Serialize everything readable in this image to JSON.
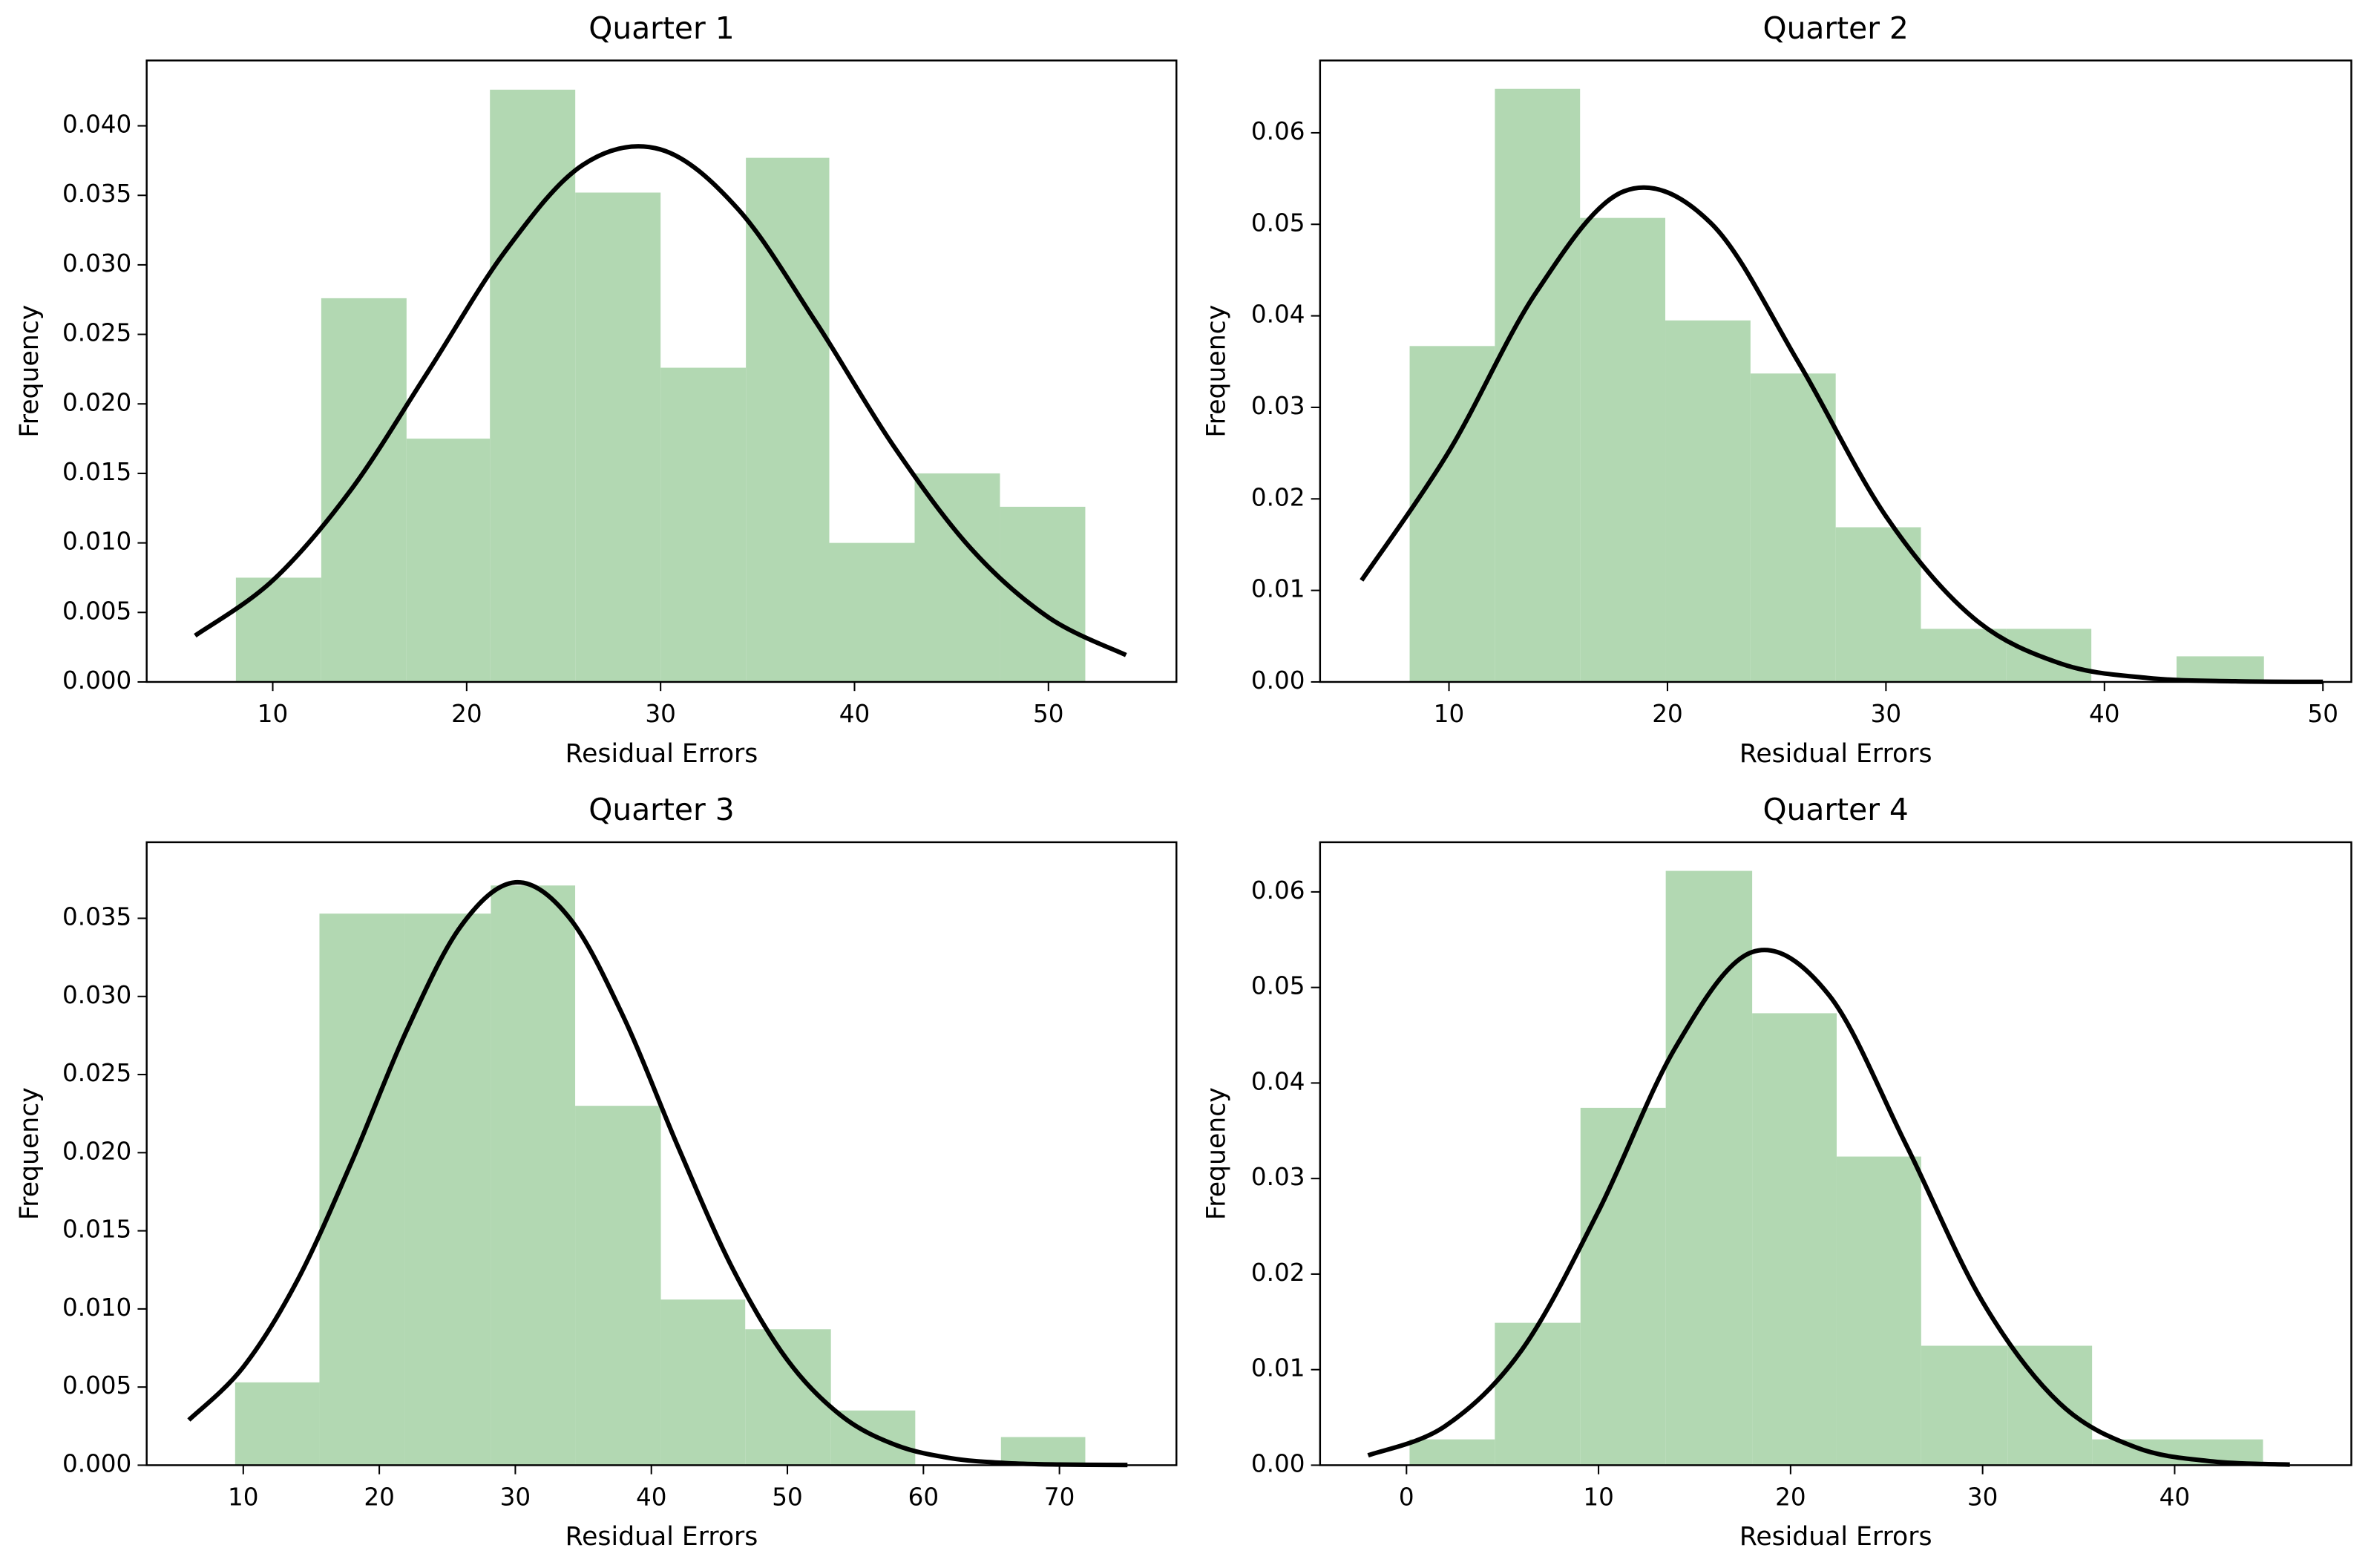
{
  "chart_data": [
    {
      "type": "histogram",
      "title": "Quarter 1",
      "xlabel": "Residual Errors",
      "ylabel": "Frequency",
      "color": "#b2d8b2",
      "bins": [
        8.1,
        12.5,
        16.9,
        21.2,
        25.6,
        30.0,
        34.4,
        38.7,
        43.1,
        47.5,
        51.9
      ],
      "values": [
        0.0075,
        0.0276,
        0.0175,
        0.0426,
        0.0352,
        0.0226,
        0.0377,
        0.01,
        0.015,
        0.0126
      ],
      "curve": {
        "color": "#000000",
        "x": [
          6,
          10,
          14,
          18,
          22,
          26,
          30,
          34,
          38,
          42,
          46,
          50,
          54
        ],
        "y": [
          0.00333,
          0.0073,
          0.01375,
          0.0223,
          0.031,
          0.0372,
          0.0383,
          0.034,
          0.0259,
          0.017,
          0.0096,
          0.00465,
          0.00193
        ]
      },
      "xlim": [
        3.5,
        56.6
      ],
      "ylim": [
        0,
        0.0447
      ],
      "xticks": [
        10,
        20,
        30,
        40,
        50
      ],
      "yticks": [
        {
          "value": 0,
          "label": "0.000"
        },
        {
          "value": 0.005,
          "label": "0.005"
        },
        {
          "value": 0.01,
          "label": "0.010"
        },
        {
          "value": 0.015,
          "label": "0.015"
        },
        {
          "value": 0.02,
          "label": "0.020"
        },
        {
          "value": 0.025,
          "label": "0.025"
        },
        {
          "value": 0.03,
          "label": "0.030"
        },
        {
          "value": 0.035,
          "label": "0.035"
        },
        {
          "value": 0.04,
          "label": "0.040"
        }
      ]
    },
    {
      "type": "histogram",
      "title": "Quarter 2",
      "xlabel": "Residual Errors",
      "ylabel": "Frequency",
      "color": "#b2d8b2",
      "bins": [
        8.2,
        12.1,
        16.0,
        19.9,
        23.8,
        27.7,
        31.6,
        35.5,
        39.4,
        43.3,
        47.3
      ],
      "values": [
        0.0367,
        0.0648,
        0.0507,
        0.0395,
        0.0337,
        0.0169,
        0.0058,
        0.0058,
        0,
        0.0028
      ],
      "curve": {
        "color": "#000000",
        "x": [
          6,
          10,
          14,
          18,
          22,
          26,
          30,
          34,
          38,
          42,
          46,
          50
        ],
        "y": [
          0.0111,
          0.0252,
          0.0426,
          0.0536,
          0.0501,
          0.0349,
          0.0181,
          0.007,
          0.002,
          0.00043,
          7e-05,
          1e-05
        ]
      },
      "xlim": [
        4.1,
        51.3
      ],
      "ylim": [
        0,
        0.0679
      ],
      "xticks": [
        10,
        20,
        30,
        40,
        50
      ],
      "yticks": [
        {
          "value": 0,
          "label": "0.00"
        },
        {
          "value": 0.01,
          "label": "0.01"
        },
        {
          "value": 0.02,
          "label": "0.02"
        },
        {
          "value": 0.03,
          "label": "0.03"
        },
        {
          "value": 0.04,
          "label": "0.04"
        },
        {
          "value": 0.05,
          "label": "0.05"
        },
        {
          "value": 0.06,
          "label": "0.06"
        }
      ]
    },
    {
      "type": "histogram",
      "title": "Quarter 3",
      "xlabel": "Residual Errors",
      "ylabel": "Frequency",
      "color": "#b2d8b2",
      "bins": [
        9.4,
        15.6,
        21.9,
        28.2,
        34.4,
        40.7,
        46.9,
        53.2,
        59.4,
        65.7,
        71.9
      ],
      "values": [
        0.0053,
        0.0353,
        0.0353,
        0.0371,
        0.023,
        0.0106,
        0.0087,
        0.0035,
        0,
        0.0018
      ],
      "curve": {
        "color": "#000000",
        "x": [
          6,
          10,
          14,
          18,
          22,
          26,
          30,
          34,
          38,
          42,
          46,
          50,
          54,
          58,
          62,
          66,
          70,
          75
        ],
        "y": [
          0.00289,
          0.00628,
          0.01186,
          0.01947,
          0.0278,
          0.0345,
          0.0373,
          0.035,
          0.0286,
          0.0203,
          0.01254,
          0.00673,
          0.00314,
          0.00128,
          0.00045,
          0.00014,
          4e-05,
          1e-05
        ]
      },
      "xlim": [
        2.9,
        78.6
      ],
      "ylim": [
        0,
        0.03987
      ],
      "xticks": [
        10,
        20,
        30,
        40,
        50,
        60,
        70
      ],
      "yticks": [
        {
          "value": 0,
          "label": "0.000"
        },
        {
          "value": 0.005,
          "label": "0.005"
        },
        {
          "value": 0.01,
          "label": "0.010"
        },
        {
          "value": 0.015,
          "label": "0.015"
        },
        {
          "value": 0.02,
          "label": "0.020"
        },
        {
          "value": 0.025,
          "label": "0.025"
        },
        {
          "value": 0.03,
          "label": "0.030"
        },
        {
          "value": 0.035,
          "label": "0.035"
        }
      ]
    },
    {
      "type": "histogram",
      "title": "Quarter 4",
      "xlabel": "Residual Errors",
      "ylabel": "Frequency",
      "color": "#b2d8b2",
      "bins": [
        0.16,
        4.6,
        9.06,
        13.5,
        18.0,
        22.4,
        26.8,
        31.3,
        35.7,
        40.1,
        44.6
      ],
      "values": [
        0.0027,
        0.0149,
        0.0374,
        0.0622,
        0.0473,
        0.0323,
        0.0125,
        0.0125,
        0.0027,
        0.0027
      ],
      "curve": {
        "color": "#000000",
        "x": [
          -2,
          2,
          6,
          10,
          14,
          18,
          22,
          26,
          30,
          34,
          38,
          42,
          46
        ],
        "y": [
          0.00103,
          0.00407,
          0.01205,
          0.0266,
          0.0437,
          0.0537,
          0.0492,
          0.0336,
          0.0171,
          0.0065,
          0.00185,
          0.00039,
          6e-05
        ]
      },
      "xlim": [
        -4.5,
        49.2
      ],
      "ylim": [
        0,
        0.0652
      ],
      "xticks": [
        0,
        10,
        20,
        30,
        40
      ],
      "yticks": [
        {
          "value": 0,
          "label": "0.00"
        },
        {
          "value": 0.01,
          "label": "0.01"
        },
        {
          "value": 0.02,
          "label": "0.02"
        },
        {
          "value": 0.03,
          "label": "0.03"
        },
        {
          "value": 0.04,
          "label": "0.04"
        },
        {
          "value": 0.05,
          "label": "0.05"
        },
        {
          "value": 0.06,
          "label": "0.06"
        }
      ]
    }
  ]
}
